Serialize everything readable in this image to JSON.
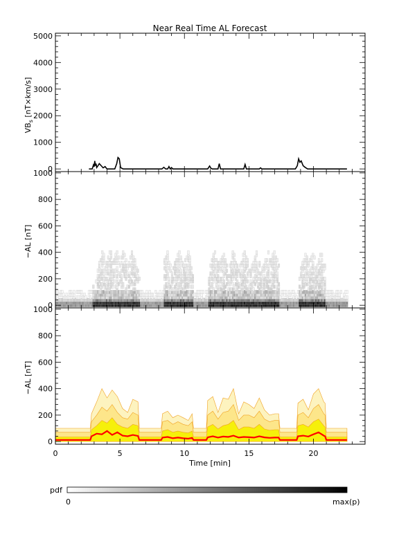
{
  "chart_data": [
    {
      "type": "line",
      "title": "Near Real Time AL Forecast",
      "ylabel": "VB_s [nT×km/s]",
      "ylabel_main": "VB",
      "ylabel_sub": "s",
      "ylabel_rest": " [nT×km/s]",
      "xlim": [
        0,
        24
      ],
      "ylim": [
        -100,
        5100
      ],
      "yticks": [
        "0",
        "1000",
        "2000",
        "3000",
        "4000",
        "5000"
      ],
      "ytick_values": [
        0,
        1000,
        2000,
        3000,
        4000,
        5000
      ],
      "series": [
        {
          "color": "#000000",
          "x": [
            2.6,
            2.85,
            2.95,
            3.0,
            3.05,
            3.1,
            3.15,
            3.2,
            3.3,
            3.4,
            3.55,
            3.7,
            3.85,
            4.0,
            4.6,
            4.75,
            4.85,
            4.95,
            5.05,
            5.25,
            8.25,
            8.4,
            8.55,
            8.7,
            8.8,
            8.9,
            9.0,
            9.1,
            11.8,
            11.95,
            12.05,
            12.15,
            12.6,
            12.7,
            12.8,
            14.6,
            14.7,
            14.8,
            15.8,
            15.9,
            16.0,
            18.6,
            18.75,
            18.85,
            18.95,
            19.05,
            19.2,
            19.35,
            19.55,
            22.6
          ],
          "y": [
            0,
            0,
            150,
            80,
            300,
            120,
            200,
            50,
            120,
            200,
            120,
            40,
            90,
            0,
            0,
            200,
            430,
            380,
            50,
            0,
            0,
            60,
            0,
            0,
            90,
            0,
            50,
            0,
            0,
            110,
            30,
            0,
            0,
            200,
            0,
            0,
            170,
            0,
            0,
            40,
            0,
            0,
            120,
            380,
            250,
            300,
            120,
            60,
            0,
            0
          ]
        }
      ]
    },
    {
      "type": "heatmap",
      "ylabel": "−AL [nT]",
      "xlim": [
        0,
        24
      ],
      "ylim": [
        -20,
        1010
      ],
      "yticks": [
        "0",
        "200",
        "400",
        "600",
        "800",
        "1000"
      ],
      "ytick_values": [
        0,
        200,
        400,
        600,
        800,
        1000
      ],
      "x_range": [
        0,
        22.6
      ],
      "active_intervals": [
        [
          2.8,
          6.5
        ],
        [
          8.3,
          10.6
        ],
        [
          11.8,
          14.3
        ],
        [
          14.3,
          17.3
        ],
        [
          18.8,
          20.9
        ]
      ],
      "peak_minutes": [
        3.6,
        4.2,
        4.7,
        5.2,
        5.9,
        8.6,
        9.5,
        10.2,
        12.3,
        12.9,
        13.7,
        14.6,
        15.5,
        16.4,
        16.9,
        19.3,
        19.9,
        20.5
      ],
      "colorbar": {
        "label": "pdf",
        "min_label": "0",
        "max_label": "max(p)"
      }
    },
    {
      "type": "area",
      "ylabel": "−AL [nT]",
      "xlabel": "Time [min]",
      "xlim": [
        0,
        24
      ],
      "ylim": [
        -20,
        1010
      ],
      "yticks": [
        "0",
        "200",
        "400",
        "600",
        "800",
        "1000"
      ],
      "ytick_values": [
        0,
        200,
        400,
        600,
        800,
        1000
      ],
      "xticks": [
        "0",
        "5",
        "10",
        "15",
        "20"
      ],
      "xtick_values": [
        0,
        5,
        10,
        15,
        20
      ],
      "x": [
        0.0,
        2.7,
        2.8,
        3.2,
        3.6,
        4.0,
        4.4,
        4.8,
        5.2,
        5.6,
        6.0,
        6.4,
        6.5,
        6.6,
        8.2,
        8.3,
        8.7,
        9.1,
        9.5,
        9.9,
        10.3,
        10.6,
        10.7,
        11.7,
        11.8,
        12.2,
        12.6,
        13.0,
        13.4,
        13.8,
        14.2,
        14.6,
        15.0,
        15.4,
        15.8,
        16.2,
        16.6,
        17.0,
        17.3,
        17.4,
        18.7,
        18.8,
        19.2,
        19.6,
        20.0,
        20.4,
        20.8,
        20.9,
        21.0,
        22.6
      ],
      "bands": [
        {
          "name": "outer",
          "color": "#fdf3bf",
          "upper": [
            100,
            100,
            210,
            300,
            400,
            330,
            390,
            340,
            250,
            220,
            320,
            300,
            100,
            100,
            100,
            210,
            230,
            180,
            200,
            180,
            160,
            210,
            100,
            100,
            310,
            340,
            220,
            330,
            320,
            400,
            210,
            300,
            280,
            250,
            330,
            240,
            200,
            210,
            210,
            100,
            100,
            290,
            320,
            240,
            360,
            400,
            300,
            290,
            100,
            100
          ]
        },
        {
          "name": "middle",
          "color": "#fde68a",
          "upper": [
            70,
            70,
            150,
            200,
            260,
            230,
            280,
            220,
            180,
            170,
            220,
            200,
            70,
            70,
            70,
            150,
            160,
            130,
            150,
            130,
            120,
            150,
            70,
            70,
            200,
            230,
            170,
            220,
            230,
            280,
            160,
            200,
            200,
            180,
            230,
            170,
            150,
            160,
            160,
            70,
            70,
            200,
            220,
            180,
            250,
            280,
            210,
            200,
            70,
            70
          ]
        },
        {
          "name": "inner",
          "color": "#f6f00a",
          "upper": [
            35,
            35,
            90,
            120,
            160,
            140,
            180,
            130,
            110,
            100,
            130,
            120,
            35,
            35,
            35,
            80,
            90,
            70,
            80,
            70,
            65,
            80,
            35,
            35,
            110,
            130,
            95,
            120,
            130,
            160,
            90,
            110,
            110,
            100,
            130,
            95,
            85,
            90,
            90,
            35,
            35,
            120,
            130,
            110,
            150,
            170,
            120,
            110,
            35,
            35
          ]
        }
      ],
      "median": {
        "color": "#ff0000",
        "y": [
          12,
          12,
          40,
          60,
          55,
          80,
          50,
          70,
          45,
          40,
          50,
          42,
          12,
          12,
          12,
          30,
          35,
          25,
          30,
          25,
          22,
          28,
          12,
          12,
          32,
          40,
          30,
          38,
          35,
          45,
          30,
          35,
          33,
          30,
          40,
          32,
          28,
          30,
          30,
          12,
          12,
          40,
          45,
          38,
          55,
          70,
          45,
          40,
          12,
          12
        ]
      }
    }
  ]
}
